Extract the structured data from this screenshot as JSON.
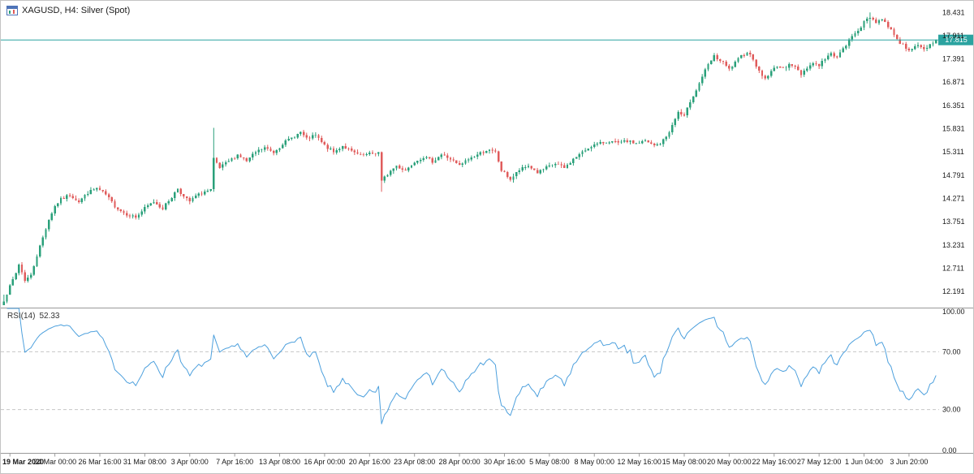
{
  "header": {
    "title": "XAGUSD, H4: Silver (Spot)"
  },
  "colors": {
    "bg": "#ffffff",
    "bull": "#2aa07a",
    "bear": "#e05c5c",
    "price_line": "#2ba3a0",
    "badge_bg": "#2ba3a0",
    "badge_text": "#ffffff",
    "rsi_line": "#4da0dd",
    "level_dash": "#c6c6c6",
    "separator": "#9a9a9a",
    "axis_text": "#1a1a1a"
  },
  "price_axis": {
    "ticks": [
      "18.431",
      "17.911",
      "17.391",
      "16.871",
      "16.351",
      "15.831",
      "15.311",
      "14.791",
      "14.271",
      "13.751",
      "13.231",
      "12.711",
      "12.191"
    ],
    "current_label": "17.815"
  },
  "rsi_panel": {
    "label": "RSI(14)",
    "value": "52.33"
  },
  "rsi_axis": {
    "ticks": [
      "100.00",
      "70.00",
      "30.00",
      "0.00"
    ]
  },
  "time_axis": {
    "labels": [
      "19 Mar 2020",
      "24 Mar 00:00",
      "26 Mar 16:00",
      "31 Mar 08:00",
      "3 Apr 00:00",
      "7 Apr 16:00",
      "13 Apr 08:00",
      "16 Apr 00:00",
      "20 Apr 16:00",
      "23 Apr 08:00",
      "28 Apr 00:00",
      "30 Apr 16:00",
      "5 May 08:00",
      "8 May 00:00",
      "12 May 16:00",
      "15 May 08:00",
      "20 May 00:00",
      "22 May 16:00",
      "27 May 12:00",
      "1 Jun 04:00",
      "3 Jun 20:00"
    ]
  },
  "chart_data": {
    "type": "candlestick",
    "symbol": "XAGUSD",
    "timeframe": "H4",
    "title": "XAGUSD, H4: Silver (Spot)",
    "n_bars": 312,
    "seed": 7,
    "noise": 0.035,
    "wick": 0.065,
    "price_range": [
      11.83,
      18.69
    ],
    "current_price": 17.815,
    "last_close": 17.815,
    "waypoints": [
      [
        0,
        12.0
      ],
      [
        2,
        12.3
      ],
      [
        4,
        12.6
      ],
      [
        5,
        12.8
      ],
      [
        7,
        12.45
      ],
      [
        9,
        12.55
      ],
      [
        11,
        13.0
      ],
      [
        13,
        13.4
      ],
      [
        15,
        13.8
      ],
      [
        17,
        14.1
      ],
      [
        19,
        14.25
      ],
      [
        22,
        14.35
      ],
      [
        25,
        14.2
      ],
      [
        28,
        14.4
      ],
      [
        31,
        14.5
      ],
      [
        34,
        14.35
      ],
      [
        37,
        14.1
      ],
      [
        40,
        13.95
      ],
      [
        44,
        13.85
      ],
      [
        47,
        14.05
      ],
      [
        50,
        14.2
      ],
      [
        53,
        14.05
      ],
      [
        56,
        14.3
      ],
      [
        58,
        14.5
      ],
      [
        60,
        14.3
      ],
      [
        62,
        14.2
      ],
      [
        64,
        14.32
      ],
      [
        67,
        14.42
      ],
      [
        69,
        14.45
      ],
      [
        70,
        15.15
      ],
      [
        72,
        14.95
      ],
      [
        75,
        15.1
      ],
      [
        78,
        15.25
      ],
      [
        81,
        15.1
      ],
      [
        84,
        15.3
      ],
      [
        87,
        15.4
      ],
      [
        90,
        15.3
      ],
      [
        93,
        15.5
      ],
      [
        96,
        15.62
      ],
      [
        99,
        15.75
      ],
      [
        101,
        15.6
      ],
      [
        104,
        15.68
      ],
      [
        107,
        15.45
      ],
      [
        110,
        15.3
      ],
      [
        113,
        15.45
      ],
      [
        116,
        15.32
      ],
      [
        119,
        15.22
      ],
      [
        125,
        15.3
      ],
      [
        126,
        14.65
      ],
      [
        128,
        14.82
      ],
      [
        131,
        15.0
      ],
      [
        134,
        14.9
      ],
      [
        137,
        15.1
      ],
      [
        140,
        15.2
      ],
      [
        143,
        15.1
      ],
      [
        146,
        15.25
      ],
      [
        149,
        15.15
      ],
      [
        152,
        15.0
      ],
      [
        155,
        15.15
      ],
      [
        158,
        15.25
      ],
      [
        161,
        15.35
      ],
      [
        164,
        15.3
      ],
      [
        166,
        14.9
      ],
      [
        169,
        14.7
      ],
      [
        172,
        14.9
      ],
      [
        175,
        15.0
      ],
      [
        178,
        14.85
      ],
      [
        181,
        14.95
      ],
      [
        184,
        15.05
      ],
      [
        187,
        14.95
      ],
      [
        190,
        15.15
      ],
      [
        193,
        15.3
      ],
      [
        196,
        15.45
      ],
      [
        199,
        15.5
      ],
      [
        202,
        15.55
      ],
      [
        205,
        15.5
      ],
      [
        208,
        15.55
      ],
      [
        211,
        15.5
      ],
      [
        214,
        15.55
      ],
      [
        217,
        15.45
      ],
      [
        219,
        15.5
      ],
      [
        221,
        15.65
      ],
      [
        223,
        15.9
      ],
      [
        225,
        16.2
      ],
      [
        227,
        16.1
      ],
      [
        229,
        16.45
      ],
      [
        231,
        16.7
      ],
      [
        233,
        17.0
      ],
      [
        235,
        17.25
      ],
      [
        237,
        17.45
      ],
      [
        240,
        17.3
      ],
      [
        242,
        17.15
      ],
      [
        244,
        17.3
      ],
      [
        246,
        17.45
      ],
      [
        248,
        17.55
      ],
      [
        250,
        17.4
      ],
      [
        252,
        17.1
      ],
      [
        254,
        16.95
      ],
      [
        256,
        17.1
      ],
      [
        258,
        17.25
      ],
      [
        260,
        17.15
      ],
      [
        262,
        17.3
      ],
      [
        264,
        17.2
      ],
      [
        266,
        17.05
      ],
      [
        268,
        17.2
      ],
      [
        270,
        17.3
      ],
      [
        272,
        17.25
      ],
      [
        274,
        17.4
      ],
      [
        276,
        17.5
      ],
      [
        278,
        17.45
      ],
      [
        280,
        17.6
      ],
      [
        282,
        17.8
      ],
      [
        284,
        17.98
      ],
      [
        286,
        18.12
      ],
      [
        288,
        18.28
      ],
      [
        289,
        18.33
      ],
      [
        291,
        18.22
      ],
      [
        293,
        18.28
      ],
      [
        295,
        18.12
      ],
      [
        297,
        17.95
      ],
      [
        299,
        17.75
      ],
      [
        301,
        17.65
      ],
      [
        303,
        17.58
      ],
      [
        305,
        17.7
      ],
      [
        307,
        17.6
      ],
      [
        309,
        17.72
      ],
      [
        311,
        17.815
      ]
    ],
    "wick_overrides": [
      {
        "bar": 0,
        "high": 12.12,
        "low": 11.94
      },
      {
        "bar": 70,
        "high": 15.85,
        "low": 14.42
      },
      {
        "bar": 126,
        "high": 15.32,
        "low": 14.42
      },
      {
        "bar": 289,
        "high": 18.431,
        "low": 18.08
      }
    ],
    "rsi": {
      "period": 14,
      "current": 52.33,
      "levels": [
        70,
        30
      ],
      "range": [
        0,
        100
      ]
    }
  }
}
